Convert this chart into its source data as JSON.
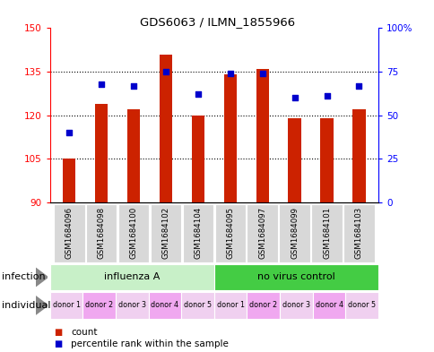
{
  "title": "GDS6063 / ILMN_1855966",
  "samples": [
    "GSM1684096",
    "GSM1684098",
    "GSM1684100",
    "GSM1684102",
    "GSM1684104",
    "GSM1684095",
    "GSM1684097",
    "GSM1684099",
    "GSM1684101",
    "GSM1684103"
  ],
  "counts": [
    105,
    124,
    122,
    141,
    120,
    134,
    136,
    119,
    119,
    122
  ],
  "percentiles": [
    40,
    68,
    67,
    75,
    62,
    74,
    74,
    60,
    61,
    67
  ],
  "ylim_left": [
    90,
    150
  ],
  "ylim_right": [
    0,
    100
  ],
  "yticks_left": [
    90,
    105,
    120,
    135,
    150
  ],
  "yticks_right": [
    0,
    25,
    50,
    75,
    100
  ],
  "infection_groups": [
    {
      "label": "influenza A",
      "start": 0,
      "end": 5,
      "color": "#c8f0c8"
    },
    {
      "label": "no virus control",
      "start": 5,
      "end": 10,
      "color": "#44cc44"
    }
  ],
  "individual_colors_pattern": [
    "#f0d0f0",
    "#f0a8f0",
    "#f0d0f0",
    "#f0a8f0",
    "#f0d0f0",
    "#f0d0f0",
    "#f0a8f0",
    "#f0d0f0",
    "#f0a8f0",
    "#f0d0f0"
  ],
  "individual_labels": [
    "donor 1",
    "donor 2",
    "donor 3",
    "donor 4",
    "donor 5",
    "donor 1",
    "donor 2",
    "donor 3",
    "donor 4",
    "donor 5"
  ],
  "bar_color": "#cc2200",
  "dot_color": "#0000cc",
  "background_color": "#ffffff",
  "label_infection": "infection",
  "label_individual": "individual",
  "bar_width": 0.4
}
